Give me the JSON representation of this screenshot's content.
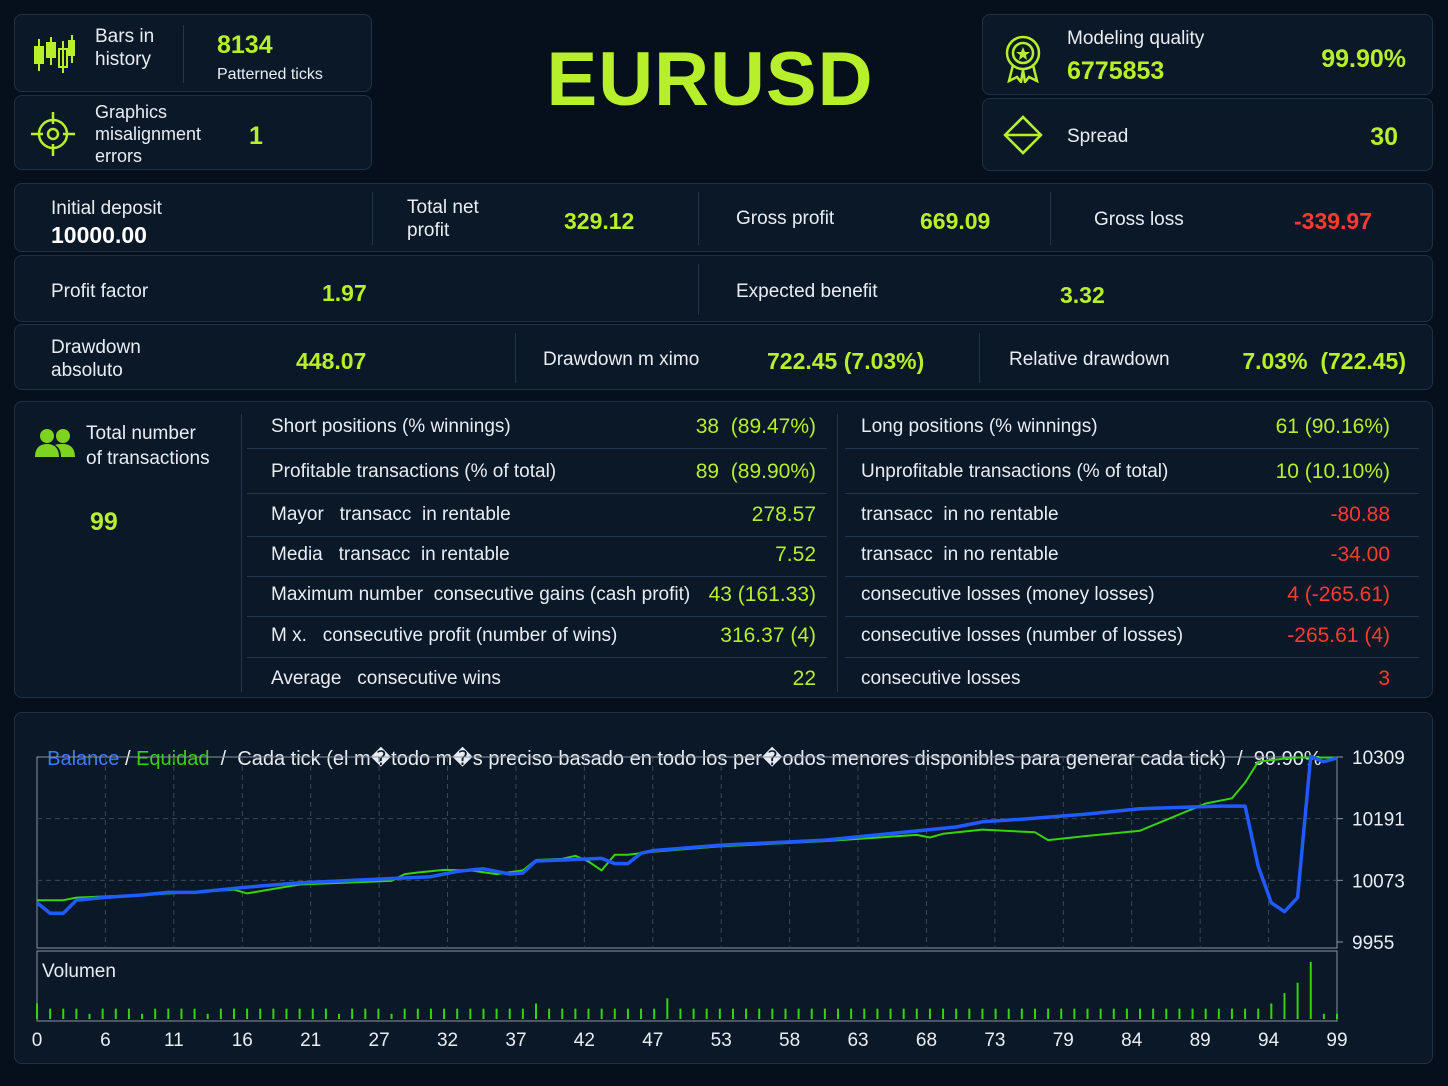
{
  "symbol": "EURUSD",
  "top_left": {
    "bars_label": "Bars in history",
    "bars_value": "8134",
    "ticks_label": "Patterned ticks",
    "graphics_label": "Graphics misalignment errors",
    "graphics_value": "1"
  },
  "top_right": {
    "modeling_label": "Modeling quality",
    "modeling_ticks": "6775853",
    "modeling_value": "99.90%",
    "spread_label": "Spread",
    "spread_value": "30"
  },
  "summary1": {
    "initial_deposit_label": "Initial deposit",
    "initial_deposit_value": "10000.00",
    "total_net_label": "Total net profit",
    "total_net_value": "329.12",
    "gross_profit_label": "Gross profit",
    "gross_profit_value": "669.09",
    "gross_loss_label": "Gross loss",
    "gross_loss_value": "-339.97"
  },
  "summary2": {
    "profit_factor_label": "Profit factor",
    "profit_factor_value": "1.97",
    "expected_label": "Expected benefit",
    "expected_value": "3.32"
  },
  "summary3": {
    "dd_abs_label": "Drawdown absoluto",
    "dd_abs_value": "448.07",
    "dd_max_label": "Drawdown m ximo",
    "dd_max_value": "722.45 (7.03%)",
    "dd_rel_label": "Relative drawdown",
    "dd_rel_value": "7.03%  (722.45)"
  },
  "transactions": {
    "total_label": "Total number of transactions",
    "total_value": "99",
    "left_rows": [
      {
        "label": "Short positions (% winnings)",
        "value": "38  (89.47%)"
      },
      {
        "label": "Profitable transactions (% of total)",
        "value": "89  (89.90%)"
      },
      {
        "label": "Mayor   transacc  in rentable",
        "value": "278.57"
      },
      {
        "label": "Media   transacc  in rentable",
        "value": "7.52"
      },
      {
        "label": "Maximum number  consecutive gains (cash profit)",
        "value": "43 (161.33)"
      },
      {
        "label": "M x.   consecutive profit (number of wins)",
        "value": "316.37 (4)"
      },
      {
        "label": "Average   consecutive wins",
        "value": "22"
      }
    ],
    "right_rows": [
      {
        "label": "Long positions (% winnings)",
        "value": "61 (90.16%)"
      },
      {
        "label": "Unprofitable transactions (% of total)",
        "value": "10 (10.10%)"
      },
      {
        "label": "transacc  in no rentable",
        "value": "-80.88"
      },
      {
        "label": "transacc  in no rentable",
        "value": "-34.00"
      },
      {
        "label": "consecutive losses (money losses)",
        "value": "4 (-265.61)"
      },
      {
        "label": "consecutive losses (number of losses)",
        "value": "-265.61 (4)"
      },
      {
        "label": "consecutive losses",
        "value": "3"
      }
    ]
  },
  "chart_header": {
    "balance": "Balance",
    "sep1": " / ",
    "equity": "Equidad",
    "sep2": "  /  ",
    "mode": "Cada tick (el m�todo m�s preciso basado en todo los per�odos menores disponibles para generar cada tick)",
    "sep3": "  /  ",
    "quality": "99.90%",
    "volume_label": "Volumen"
  },
  "colors": {
    "accent": "#b7ef2a",
    "negative": "#ff3a2e",
    "balance_line": "#1f5bff",
    "equity_line": "#35d40a",
    "background": "#05101c",
    "panel": "#0b1828"
  },
  "chart_data": {
    "type": "line",
    "title": "",
    "x_ticks": [
      0,
      6,
      11,
      16,
      21,
      27,
      32,
      37,
      42,
      47,
      53,
      58,
      63,
      68,
      73,
      79,
      84,
      89,
      94,
      99
    ],
    "y_ticks": [
      10309,
      10191,
      10073,
      9955
    ],
    "ylim": [
      9955,
      10309
    ],
    "xlim": [
      0,
      99
    ],
    "series": [
      {
        "name": "Balance",
        "color": "#1f5bff",
        "x": [
          0,
          1,
          2,
          3,
          5,
          8,
          10,
          12,
          16,
          20,
          25,
          30,
          32,
          34,
          36,
          37,
          38,
          40,
          43,
          44,
          45,
          46,
          47,
          52,
          60,
          66,
          68,
          70,
          72,
          75,
          80,
          84,
          90,
          92,
          93,
          94,
          95,
          96,
          97,
          98,
          99
        ],
        "y": [
          10030,
          10010,
          10010,
          10035,
          10040,
          10045,
          10050,
          10050,
          10060,
          10068,
          10074,
          10080,
          10090,
          10095,
          10085,
          10087,
          10110,
          10112,
          10115,
          10105,
          10105,
          10125,
          10130,
          10140,
          10150,
          10165,
          10170,
          10175,
          10185,
          10190,
          10200,
          10210,
          10215,
          10215,
          10100,
          10030,
          10013,
          10040,
          10310,
          10300,
          10307
        ]
      },
      {
        "name": "Equidad",
        "color": "#35d40a",
        "x": [
          0,
          2,
          3,
          8,
          15,
          16,
          20,
          27,
          28,
          29,
          31,
          33,
          35,
          37,
          38,
          40,
          41,
          42,
          43,
          44,
          45,
          47,
          52,
          60,
          67,
          68,
          69,
          72,
          76,
          77,
          80,
          84,
          89,
          91,
          92,
          93,
          94,
          95,
          96,
          97,
          98,
          99
        ],
        "y": [
          10035,
          10035,
          10040,
          10045,
          10055,
          10048,
          10065,
          10072,
          10085,
          10088,
          10093,
          10092,
          10085,
          10092,
          10112,
          10114,
          10120,
          10109,
          10092,
          10122,
          10122,
          10128,
          10138,
          10148,
          10160,
          10155,
          10162,
          10170,
          10165,
          10150,
          10158,
          10168,
          10220,
          10230,
          10260,
          10300,
          10303,
          10306,
          10308,
          10308,
          10308,
          10308
        ]
      }
    ],
    "volume": {
      "label": "Volumen",
      "x": [
        0,
        1,
        2,
        3,
        4,
        5,
        6,
        7,
        8,
        9,
        10,
        11,
        12,
        13,
        14,
        15,
        16,
        17,
        18,
        19,
        20,
        21,
        22,
        23,
        24,
        25,
        26,
        27,
        28,
        29,
        30,
        31,
        32,
        33,
        34,
        35,
        36,
        37,
        38,
        39,
        40,
        41,
        42,
        43,
        44,
        45,
        46,
        47,
        48,
        49,
        50,
        51,
        52,
        53,
        54,
        55,
        56,
        57,
        58,
        59,
        60,
        61,
        62,
        63,
        64,
        65,
        66,
        67,
        68,
        69,
        70,
        71,
        72,
        73,
        74,
        75,
        76,
        77,
        78,
        79,
        80,
        81,
        82,
        83,
        84,
        85,
        86,
        87,
        88,
        89,
        90,
        91,
        92,
        93,
        94,
        95,
        96,
        97,
        98,
        99
      ],
      "y": [
        3,
        2,
        2,
        2,
        1,
        2,
        2,
        2,
        1,
        2,
        2,
        2,
        2,
        1,
        2,
        2,
        2,
        2,
        2,
        2,
        2,
        2,
        2,
        1,
        2,
        2,
        2,
        1,
        2,
        2,
        2,
        2,
        2,
        2,
        2,
        2,
        2,
        2,
        3,
        2,
        2,
        2,
        2,
        2,
        2,
        2,
        2,
        2,
        4,
        2,
        2,
        2,
        2,
        2,
        2,
        2,
        2,
        2,
        2,
        2,
        2,
        2,
        2,
        2,
        2,
        2,
        2,
        2,
        2,
        2,
        2,
        2,
        2,
        2,
        2,
        2,
        2,
        2,
        2,
        2,
        2,
        2,
        2,
        2,
        2,
        2,
        2,
        2,
        2,
        2,
        2,
        2,
        2,
        2,
        3,
        5,
        7,
        11,
        1,
        1
      ]
    }
  }
}
